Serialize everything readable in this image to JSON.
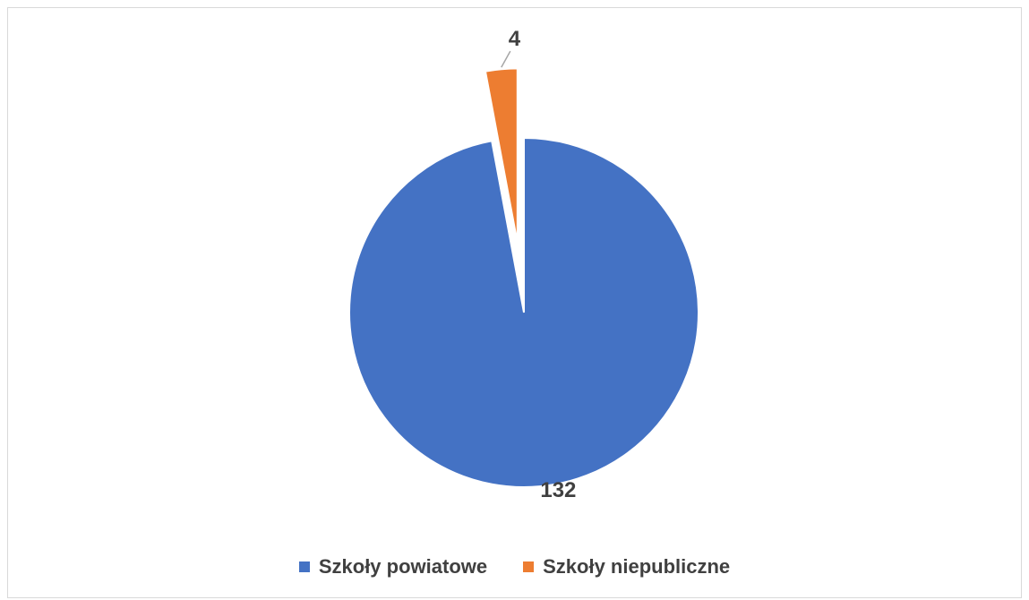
{
  "chart_data": {
    "type": "pie",
    "title": "",
    "categories": [
      "Szkoły powiatowe",
      "Szkoły niepubliczne"
    ],
    "values": [
      132,
      4
    ],
    "data_labels": [
      "132",
      "4"
    ],
    "colors": [
      "#4472c4",
      "#ed7d31"
    ],
    "exploded": [
      false,
      true
    ],
    "legend_position": "bottom"
  },
  "legend": {
    "items": [
      {
        "label": "Szkoły powiatowe",
        "color": "#4472c4"
      },
      {
        "label": "Szkoły niepubliczne",
        "color": "#ed7d31"
      }
    ]
  }
}
